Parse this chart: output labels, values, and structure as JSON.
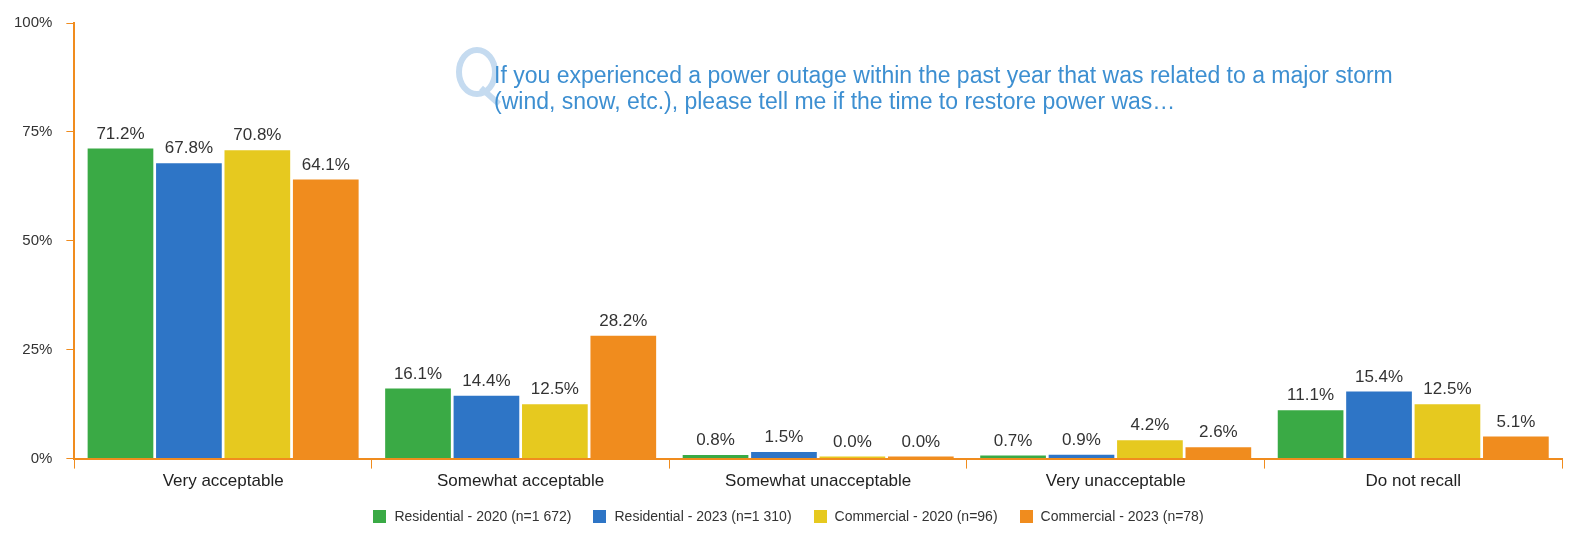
{
  "chart_data": {
    "type": "bar",
    "title": "If you experienced a power outage within the past year that was related to a major storm (wind, snow, etc.), please tell me if the time to restore power was…",
    "categories": [
      "Very acceptable",
      "Somewhat acceptable",
      "Somewhat unacceptable",
      "Very unacceptable",
      "Do not recall"
    ],
    "series": [
      {
        "name": "Residential - 2020 (n=1 672)",
        "color": "#3aaa45",
        "values": [
          71.2,
          16.1,
          0.8,
          0.7,
          11.1
        ],
        "value_labels": [
          "71.2%",
          "16.1%",
          "0.8%",
          "0.7%",
          "11.1%"
        ]
      },
      {
        "name": "Residential - 2023 (n=1 310)",
        "color": "#2e75c6",
        "values": [
          67.8,
          14.4,
          1.5,
          0.9,
          15.4
        ],
        "value_labels": [
          "67.8%",
          "14.4%",
          "1.5%",
          "0.9%",
          "15.4%"
        ]
      },
      {
        "name": "Commercial - 2020 (n=96)",
        "color": "#e6c91f",
        "values": [
          70.8,
          12.5,
          0.0,
          4.2,
          12.5
        ],
        "value_labels": [
          "70.8%",
          "12.5%",
          "0.0%",
          "4.2%",
          "12.5%"
        ]
      },
      {
        "name": "Commercial - 2023 (n=78)",
        "color": "#f08c1e",
        "values": [
          64.1,
          28.2,
          0.0,
          2.6,
          5.1
        ],
        "value_labels": [
          "64.1%",
          "28.2%",
          "0.0%",
          "2.6%",
          "5.1%"
        ]
      }
    ],
    "ylim": [
      0,
      100
    ],
    "yticks": [
      {
        "value": 0,
        "label": "0%"
      },
      {
        "value": 25,
        "label": "25%"
      },
      {
        "value": 50,
        "label": "50%"
      },
      {
        "value": 75,
        "label": "75%"
      },
      {
        "value": 100,
        "label": "100%"
      }
    ],
    "grid": false,
    "legend": "bottom"
  }
}
